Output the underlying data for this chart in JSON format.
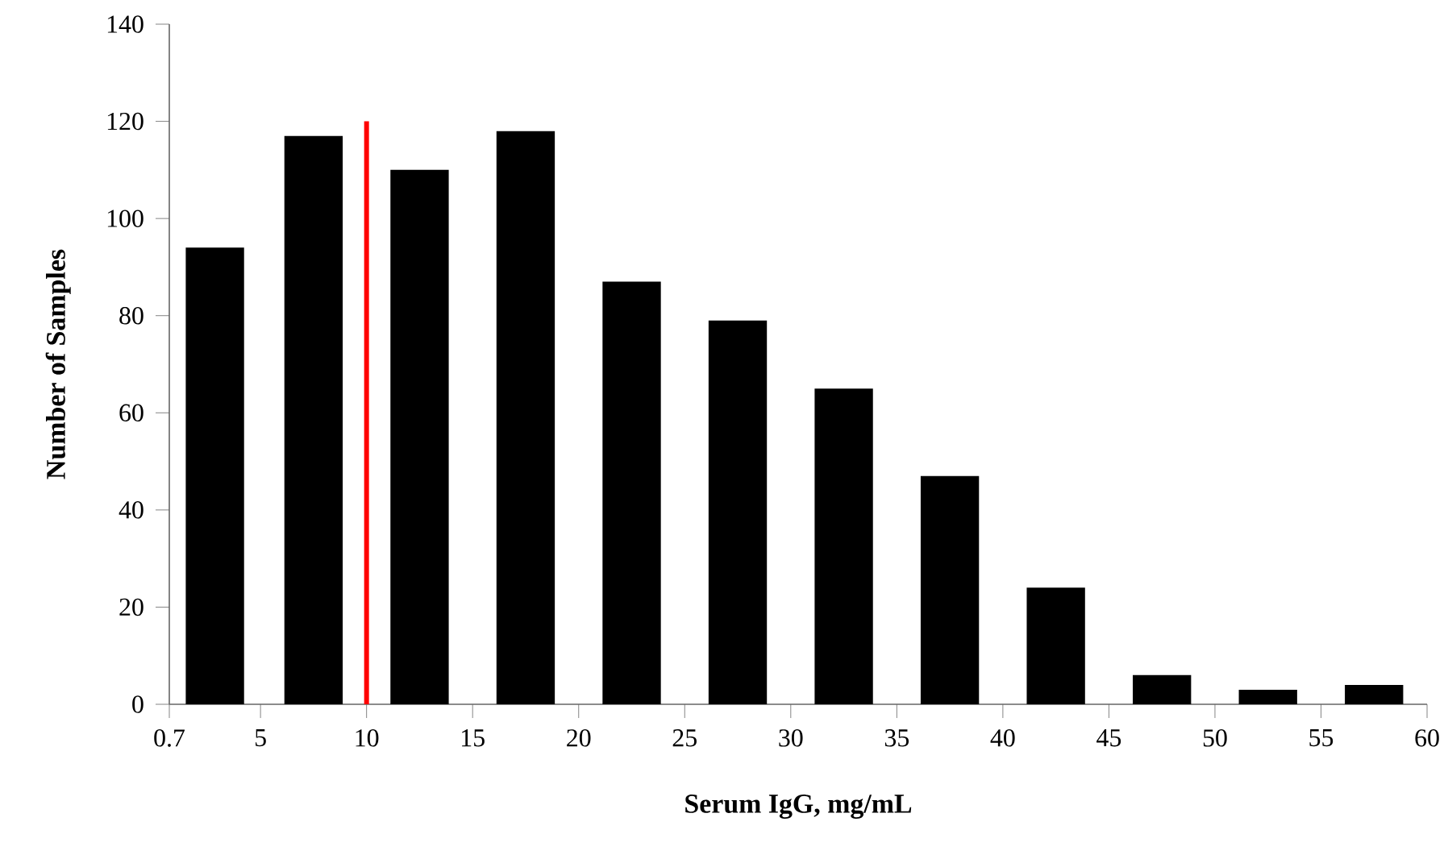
{
  "chart_data": {
    "type": "histogram",
    "xlabel": "Serum IgG, mg/mL",
    "ylabel": "Number of Samples",
    "bins": [
      0.7,
      5,
      10,
      15,
      20,
      25,
      30,
      35,
      40,
      45,
      50,
      55,
      60
    ],
    "values": [
      94,
      117,
      110,
      118,
      87,
      79,
      65,
      47,
      24,
      6,
      3,
      4
    ],
    "color": "#000000",
    "xlim": [
      0.7,
      60
    ],
    "xticks": [
      0.7,
      5,
      10,
      15,
      20,
      25,
      30,
      35,
      40,
      45,
      50,
      55,
      60
    ],
    "ylim": [
      0,
      140
    ],
    "yticks": [
      0,
      20,
      40,
      60,
      80,
      100,
      120,
      140
    ],
    "ref_lines": [
      {
        "axis": "x",
        "value": 10,
        "color": "#ff0000"
      }
    ],
    "grid": false
  }
}
